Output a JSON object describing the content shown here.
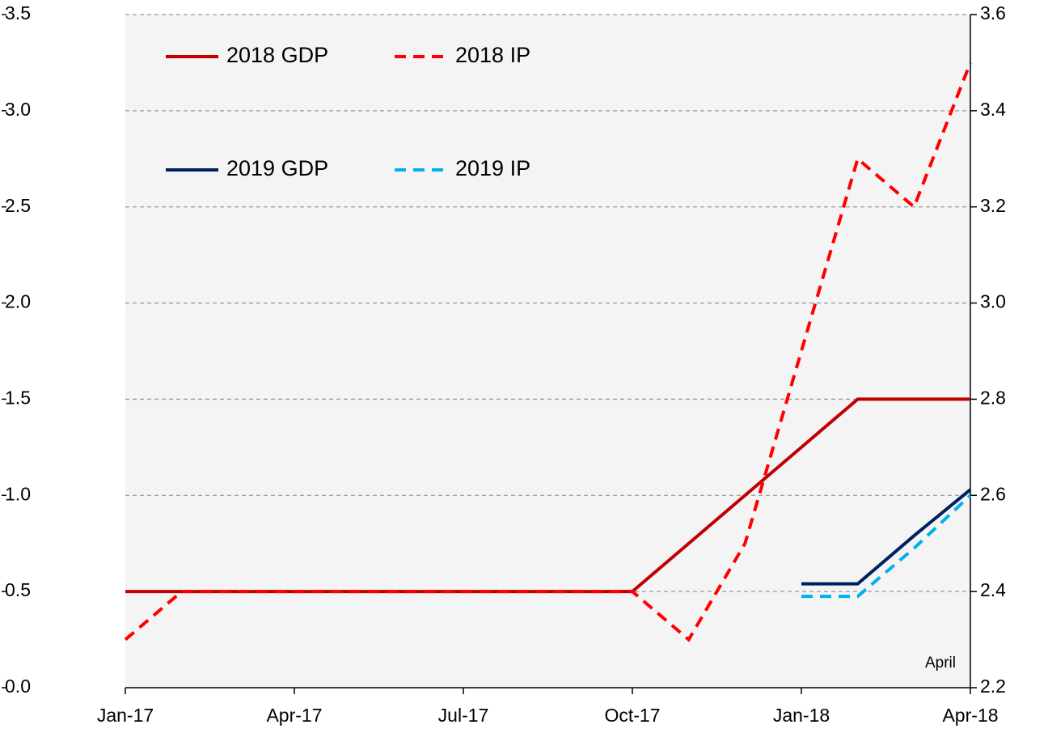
{
  "chart_data": {
    "type": "line",
    "categories": [
      "Jan-17",
      null,
      null,
      "Apr-17",
      null,
      null,
      "Jul-17",
      null,
      null,
      "Oct-17",
      null,
      null,
      "Jan-18",
      null,
      null,
      "Apr-18"
    ],
    "series": [
      {
        "name": "2018 GDP",
        "color": "#c00000",
        "style": "solid",
        "axis": "y",
        "values": [
          0.5,
          0.5,
          0.5,
          0.5,
          0.5,
          0.5,
          0.5,
          0.5,
          0.5,
          0.5,
          0.75,
          1.0,
          1.25,
          1.5,
          1.5,
          1.5
        ]
      },
      {
        "name": "2018 IP",
        "color": "#ff0000",
        "style": "dashed",
        "axis": "y2",
        "values": [
          2.3,
          2.4,
          2.4,
          2.4,
          2.4,
          2.4,
          2.4,
          2.4,
          2.4,
          2.4,
          2.3,
          2.5,
          2.9,
          3.3,
          3.2,
          3.5
        ]
      },
      {
        "name": "2019 GDP",
        "color": "#002060",
        "style": "solid",
        "axis": "y",
        "values": [
          null,
          null,
          null,
          null,
          null,
          null,
          null,
          null,
          null,
          null,
          null,
          null,
          0.54,
          0.54,
          0.79,
          1.03
        ]
      },
      {
        "name": "2019 IP",
        "color": "#00b0f0",
        "style": "dashed",
        "axis": "y2",
        "values": [
          null,
          null,
          null,
          null,
          null,
          null,
          null,
          null,
          null,
          null,
          null,
          null,
          2.39,
          2.39,
          2.49,
          2.6
        ]
      }
    ],
    "ylim": [
      0,
      3.5
    ],
    "yticks": [
      {
        "value": 0,
        "label": "0.0"
      },
      0.5,
      {
        "value": 1,
        "label": "1.0"
      },
      1.5,
      {
        "value": 2,
        "label": "2.0"
      },
      2.5,
      {
        "value": 3,
        "label": "3.0"
      },
      3.5
    ],
    "y2lim": [
      2.2,
      3.6
    ],
    "y2ticks": [
      2.2,
      2.4,
      2.6,
      2.8,
      {
        "value": 3,
        "label": "3.0"
      },
      3.2,
      3.4,
      3.6
    ],
    "grid": true,
    "annotations": [
      "April"
    ]
  }
}
